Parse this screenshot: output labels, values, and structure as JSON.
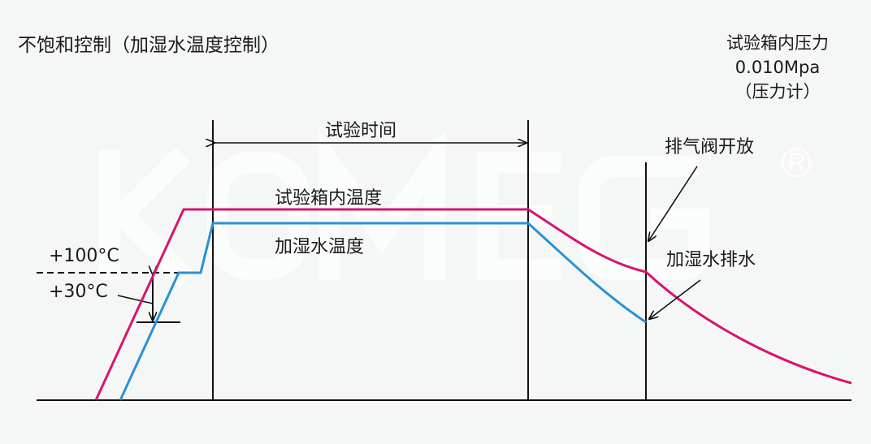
{
  "title": "不饱和控制（加湿水温度控制）",
  "pressure_note": {
    "line1": "试验箱内压力",
    "line2": "0.010Mpa",
    "line3": "（压力计）"
  },
  "labels": {
    "test_time": "试验时间",
    "chamber_temp": "试验箱内温度",
    "humidify_water_temp": "加湿水温度",
    "exhaust_valve_open": "排气阀开放",
    "humidify_water_drain": "加湿水排水",
    "plus_100c": "+100°C",
    "plus_30c": "+30°C"
  },
  "watermark": "KOMEG ®",
  "colors": {
    "chamber_temp": "#d6156f",
    "humidify_water_temp": "#2a90d6",
    "axis": "#111111",
    "background": "#f5f7f7"
  }
}
